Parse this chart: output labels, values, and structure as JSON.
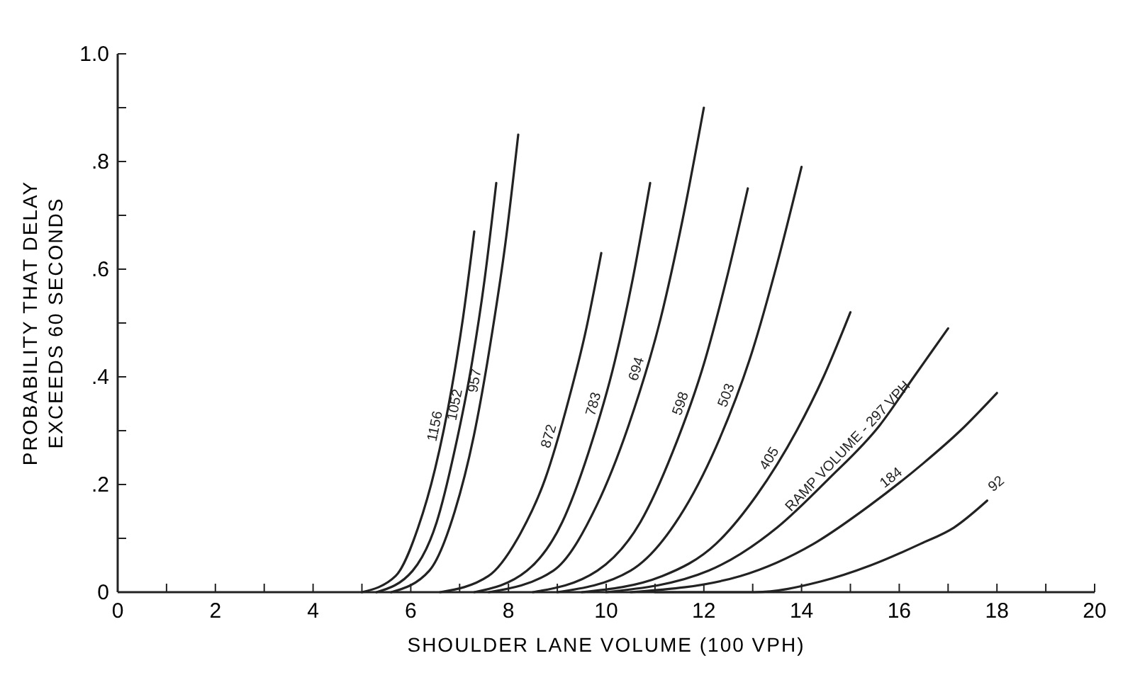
{
  "chart_data": {
    "type": "line",
    "xlabel": "SHOULDER LANE VOLUME (100 VPH)",
    "ylabel": "PROBABILITY THAT DELAY\nEXCEEDS 60 SECONDS",
    "xlim": [
      0,
      20
    ],
    "ylim": [
      0,
      1
    ],
    "xticks": [
      0,
      {
        "value": 1,
        "label": null
      },
      2,
      {
        "value": 3,
        "label": null
      },
      4,
      {
        "value": 5,
        "label": null
      },
      6,
      {
        "value": 7,
        "label": null
      },
      8,
      {
        "value": 9,
        "label": null
      },
      10,
      {
        "value": 11,
        "label": null
      },
      12,
      {
        "value": 13,
        "label": null
      },
      14,
      {
        "value": 15,
        "label": null
      },
      16,
      {
        "value": 17,
        "label": null
      },
      18,
      {
        "value": 19,
        "label": null
      },
      20
    ],
    "yticks": [
      0,
      {
        "value": 0.1,
        "label": null
      },
      {
        "value": 0.2,
        "label": ".2"
      },
      {
        "value": 0.3,
        "label": null
      },
      {
        "value": 0.4,
        "label": ".4"
      },
      {
        "value": 0.5,
        "label": null
      },
      {
        "value": 0.6,
        "label": ".6"
      },
      {
        "value": 0.7,
        "label": null
      },
      {
        "value": 0.8,
        "label": ".8"
      },
      {
        "value": 0.9,
        "label": null
      },
      {
        "value": 1,
        "label": "1.0"
      }
    ],
    "grid": false,
    "marker": "none",
    "line_style": "solid",
    "series": [
      {
        "name": "1156",
        "color": "#222222",
        "x": [
          5.0,
          5.69,
          6.15,
          6.5,
          6.84,
          7.07,
          7.3
        ],
        "values": [
          0,
          0.03,
          0.12,
          0.23,
          0.38,
          0.51,
          0.67
        ]
      },
      {
        "name": "1052",
        "color": "#222222",
        "x": [
          5.3,
          6.04,
          6.53,
          6.89,
          7.26,
          7.51,
          7.75
        ],
        "values": [
          0,
          0.04,
          0.13,
          0.26,
          0.43,
          0.58,
          0.76
        ]
      },
      {
        "name": "957",
        "color": "#222222",
        "x": [
          5.6,
          6.38,
          6.9,
          7.29,
          7.68,
          7.94,
          8.2
        ],
        "values": [
          0,
          0.04,
          0.15,
          0.29,
          0.49,
          0.65,
          0.85
        ]
      },
      {
        "name": "872",
        "color": "#222222",
        "x": [
          6.6,
          7.59,
          8.25,
          8.75,
          9.24,
          9.57,
          9.9
        ],
        "values": [
          0,
          0.03,
          0.11,
          0.21,
          0.36,
          0.48,
          0.63
        ]
      },
      {
        "name": "783",
        "color": "#222222",
        "x": [
          7.3,
          8.38,
          9.1,
          9.64,
          10.18,
          10.54,
          10.9
        ],
        "values": [
          0,
          0.04,
          0.13,
          0.26,
          0.43,
          0.58,
          0.76
        ]
      },
      {
        "name": "694",
        "color": "#222222",
        "x": [
          7.6,
          8.92,
          9.8,
          10.46,
          11.12,
          11.56,
          12.0
        ],
        "values": [
          0,
          0.04,
          0.16,
          0.31,
          0.51,
          0.69,
          0.9
        ]
      },
      {
        "name": "598",
        "color": "#222222",
        "x": [
          8.5,
          9.82,
          10.7,
          11.36,
          12.02,
          12.46,
          12.9
        ],
        "values": [
          0,
          0.04,
          0.13,
          0.26,
          0.43,
          0.58,
          0.75
        ]
      },
      {
        "name": "503",
        "color": "#222222",
        "x": [
          9.0,
          10.5,
          11.5,
          12.25,
          13.0,
          13.5,
          14.0
        ],
        "values": [
          0,
          0.04,
          0.14,
          0.27,
          0.45,
          0.61,
          0.79
        ]
      },
      {
        "name": "405",
        "color": "#222222",
        "x": [
          9.5,
          11.15,
          12.25,
          13.08,
          13.9,
          14.45,
          15.0
        ],
        "values": [
          0,
          0.03,
          0.09,
          0.18,
          0.3,
          0.4,
          0.52
        ]
      },
      {
        "name": "RAMP VOLUME - 297 VPH",
        "color": "#222222",
        "x": [
          10,
          12.1,
          13.5,
          14.55,
          15.6,
          16.3,
          17
        ],
        "values": [
          0,
          0.04,
          0.12,
          0.21,
          0.31,
          0.4,
          0.49
        ]
      },
      {
        "name": "184",
        "color": "#222222",
        "x": [
          10.5,
          12.75,
          14.25,
          15.38,
          16.5,
          17.25,
          18
        ],
        "values": [
          0,
          0.03,
          0.09,
          0.16,
          0.24,
          0.3,
          0.37
        ]
      },
      {
        "name": "92",
        "color": "#222222",
        "x": [
          11,
          13.04,
          14.4,
          15.42,
          16.44,
          17.12,
          17.8
        ],
        "values": [
          0,
          0,
          0.02,
          0.05,
          0.09,
          0.12,
          0.17
        ]
      }
    ]
  }
}
